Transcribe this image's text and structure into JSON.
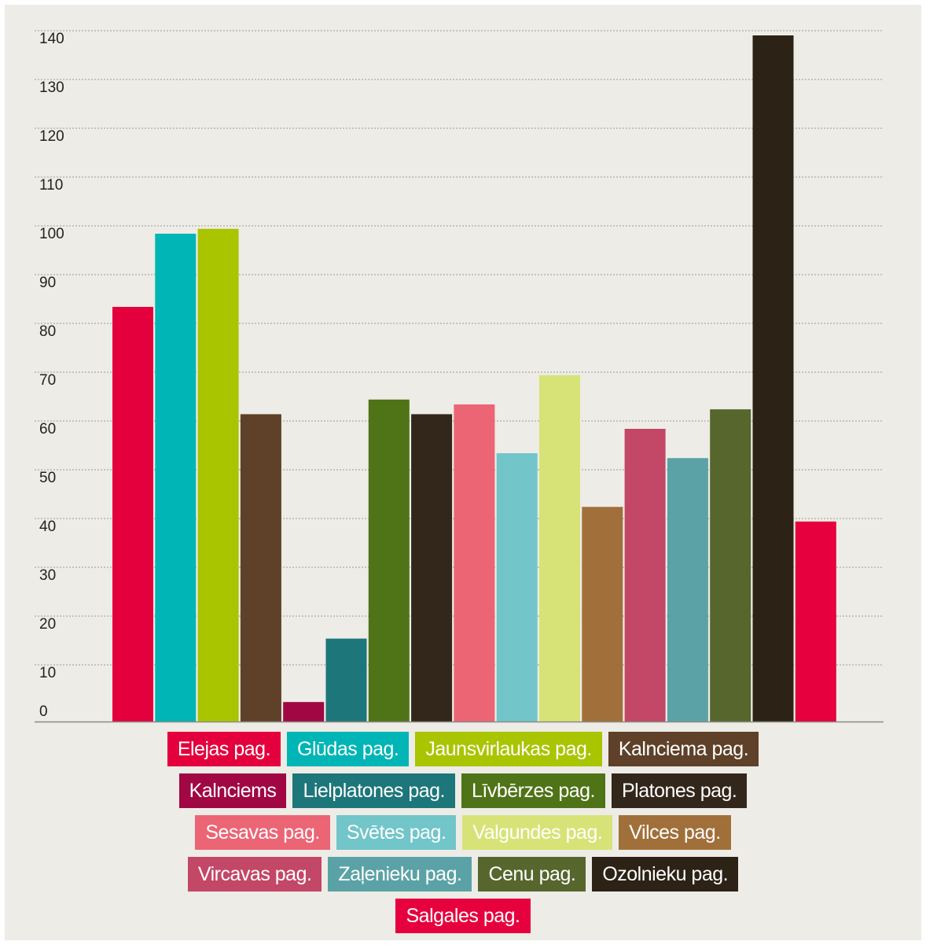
{
  "chart_data": {
    "type": "bar",
    "categories": [
      "Elejas pag.",
      "Glūdas pag.",
      "Jaunsvirlaukas pag.",
      "Kalnciema pag.",
      "Kalnciems",
      "Lielplatones pag.",
      "Līvbērzes pag.",
      "Platones pag.",
      "Sesavas pag.",
      "Svētes pag.",
      "Valgundes pag.",
      "Vilces pag.",
      "Vircavas pag.",
      "Zaļenieku pag.",
      "Cenu pag.",
      "Ozolnieku pag.",
      "Salgales pag."
    ],
    "values": [
      85,
      100,
      101,
      63,
      4,
      17,
      66,
      63,
      65,
      55,
      71,
      44,
      60,
      54,
      64,
      141,
      41
    ],
    "colors": [
      "#e4003c",
      "#00b5b5",
      "#a8c500",
      "#5e4128",
      "#a00743",
      "#1d767a",
      "#4f7317",
      "#33261a",
      "#ec6575",
      "#72c5c9",
      "#d7e376",
      "#a1703a",
      "#c34766",
      "#5ba2a6",
      "#56662d",
      "#2c2216",
      "#e6003d"
    ],
    "yticks": [
      0,
      10,
      20,
      30,
      40,
      50,
      60,
      70,
      80,
      90,
      100,
      110,
      120,
      130,
      140
    ],
    "ylim": [
      0,
      141
    ],
    "grid": true,
    "legend_position": "bottom",
    "legend_rows": [
      [
        0,
        1,
        2,
        3
      ],
      [
        4,
        5,
        6,
        7
      ],
      [
        8,
        9,
        10,
        11
      ],
      [
        12,
        13,
        14,
        15
      ],
      [
        16
      ]
    ]
  }
}
